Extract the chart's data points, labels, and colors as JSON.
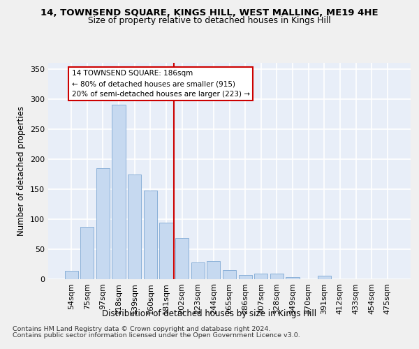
{
  "title_line1": "14, TOWNSEND SQUARE, KINGS HILL, WEST MALLING, ME19 4HE",
  "title_line2": "Size of property relative to detached houses in Kings Hill",
  "xlabel": "Distribution of detached houses by size in Kings Hill",
  "ylabel": "Number of detached properties",
  "categories": [
    "54sqm",
    "75sqm",
    "97sqm",
    "118sqm",
    "139sqm",
    "160sqm",
    "181sqm",
    "202sqm",
    "223sqm",
    "244sqm",
    "265sqm",
    "286sqm",
    "307sqm",
    "328sqm",
    "349sqm",
    "370sqm",
    "391sqm",
    "412sqm",
    "433sqm",
    "454sqm",
    "475sqm"
  ],
  "values": [
    14,
    87,
    185,
    290,
    174,
    147,
    94,
    68,
    28,
    30,
    15,
    7,
    9,
    9,
    3,
    0,
    6,
    0,
    0,
    0,
    0
  ],
  "bar_color": "#c6d9f0",
  "bar_edge_color": "#8ab0d8",
  "vline_color": "#cc0000",
  "vline_index": 6.5,
  "annotation_line1": "14 TOWNSEND SQUARE: 186sqm",
  "annotation_line2": "← 80% of detached houses are smaller (915)",
  "annotation_line3": "20% of semi-detached houses are larger (223) →",
  "annotation_box_edgecolor": "#cc0000",
  "ylim_max": 360,
  "yticks": [
    0,
    50,
    100,
    150,
    200,
    250,
    300,
    350
  ],
  "footer_line1": "Contains HM Land Registry data © Crown copyright and database right 2024.",
  "footer_line2": "Contains public sector information licensed under the Open Government Licence v3.0.",
  "bg_color": "#e8eef8",
  "grid_color": "#ffffff",
  "fig_facecolor": "#f0f0f0"
}
